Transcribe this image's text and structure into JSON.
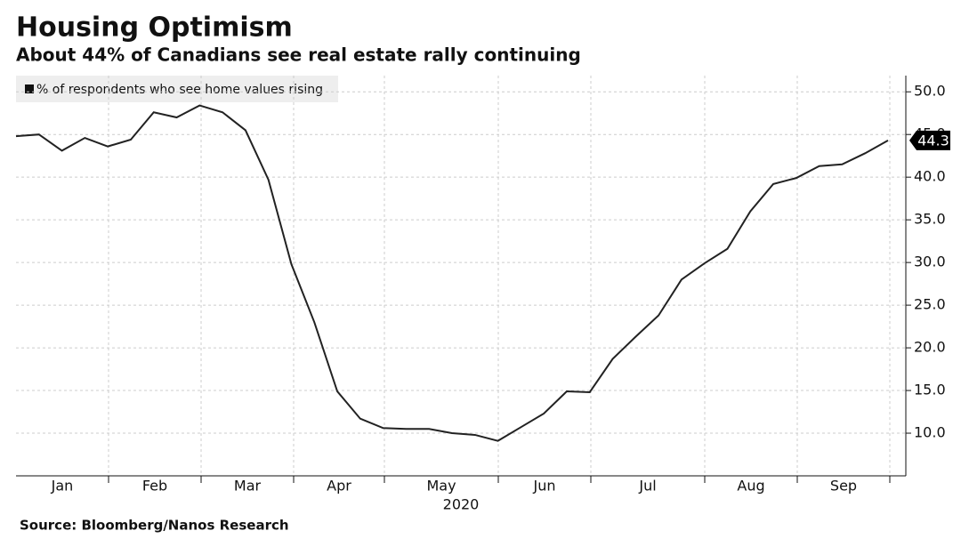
{
  "chart_data": {
    "type": "line",
    "title": "Housing Optimism",
    "subtitle": "About 44% of Canadians see real estate rally continuing",
    "source": "Source: Bloomberg/Nanos Research",
    "month_labels": [
      "Jan",
      "Feb",
      "Mar",
      "Apr",
      "May",
      "Jun",
      "Jul",
      "Aug",
      "Sep"
    ],
    "year_label": "2020",
    "series": [
      {
        "name": "% of respondents who see home values rising",
        "color": "#222222",
        "values": [
          44.8,
          45.0,
          43.1,
          44.6,
          43.6,
          44.4,
          47.6,
          47.0,
          48.4,
          47.6,
          45.5,
          39.7,
          29.8,
          23.0,
          14.9,
          11.7,
          10.6,
          10.5,
          10.5,
          10.0,
          9.8,
          9.1,
          10.7,
          12.3,
          14.9,
          14.8,
          18.7,
          21.3,
          23.8,
          28.0,
          29.9,
          31.6,
          36.0,
          39.2,
          39.9,
          41.3,
          41.5,
          42.8,
          44.3
        ]
      }
    ],
    "ylim": [
      5,
      51.9
    ],
    "yticks": [
      {
        "value": 10,
        "label": "10.0"
      },
      {
        "value": 15,
        "label": "15.0"
      },
      {
        "value": 20,
        "label": "20.0"
      },
      {
        "value": 25,
        "label": "25.0"
      },
      {
        "value": 30,
        "label": "30.0"
      },
      {
        "value": 35,
        "label": "35.0"
      },
      {
        "value": 40,
        "label": "40.0"
      },
      {
        "value": 45,
        "label": "45.0"
      },
      {
        "value": 50,
        "label": "50.0"
      }
    ],
    "grid": true
  }
}
